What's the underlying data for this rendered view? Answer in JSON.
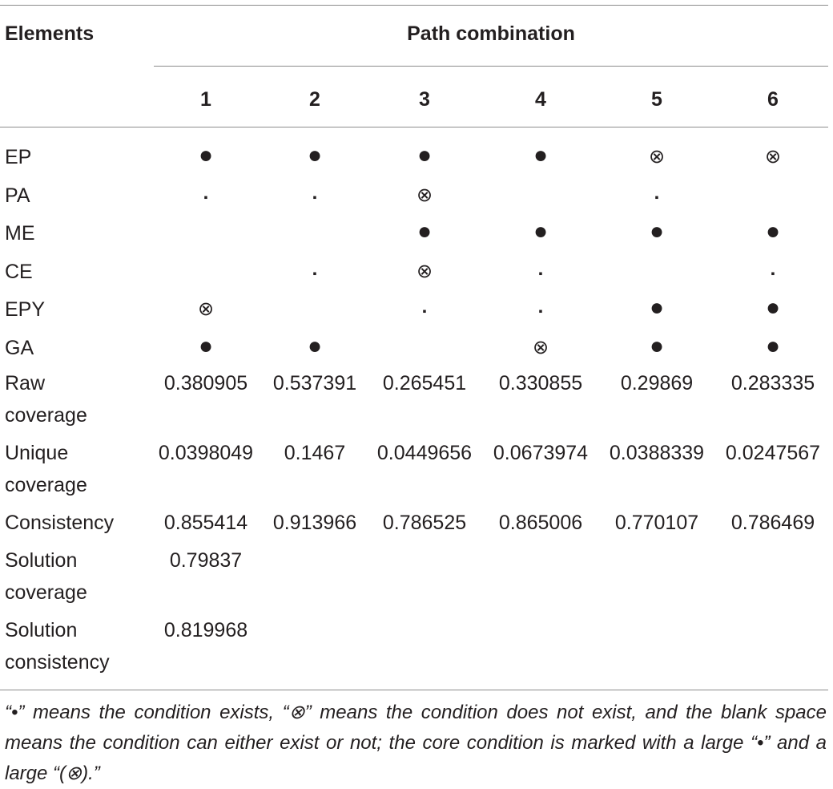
{
  "header": {
    "elements": "Elements",
    "path_combination": "Path combination",
    "columns": [
      "1",
      "2",
      "3",
      "4",
      "5",
      "6"
    ]
  },
  "rows": [
    {
      "label": "EP",
      "cells": [
        "core",
        "core",
        "core",
        "core",
        "absent",
        "absent"
      ]
    },
    {
      "label": "PA",
      "cells": [
        "peripheral",
        "peripheral",
        "absent",
        "",
        "peripheral",
        ""
      ]
    },
    {
      "label": "ME",
      "cells": [
        "",
        "",
        "core",
        "core",
        "core",
        "core"
      ]
    },
    {
      "label": "CE",
      "cells": [
        "",
        "peripheral",
        "absent",
        "peripheral",
        "",
        "peripheral"
      ]
    },
    {
      "label": "EPY",
      "cells": [
        "absent",
        "",
        "peripheral",
        "peripheral",
        "core",
        "core"
      ]
    },
    {
      "label": "GA",
      "cells": [
        "core",
        "core",
        "",
        "absent",
        "core",
        "core"
      ]
    }
  ],
  "symbols": {
    "core": "●",
    "peripheral": "■",
    "absent": "⊗"
  },
  "metrics": [
    {
      "label1": "Raw",
      "label2": "coverage",
      "values": [
        "0.380905",
        "0.537391",
        "0.265451",
        "0.330855",
        "0.29869",
        "0.283335"
      ]
    },
    {
      "label1": "Unique",
      "label2": "coverage",
      "values": [
        "0.0398049",
        "0.1467",
        "0.0449656",
        "0.0673974",
        "0.0388339",
        "0.0247567"
      ]
    },
    {
      "label1": "Consistency",
      "label2": "",
      "values": [
        "0.855414",
        "0.913966",
        "0.786525",
        "0.865006",
        "0.770107",
        "0.786469"
      ]
    }
  ],
  "solution": [
    {
      "label1": "Solution",
      "label2": "coverage",
      "value": "0.79837"
    },
    {
      "label1": "Solution",
      "label2": "consistency",
      "value": "0.819968"
    }
  ],
  "footnote": "“•” means the condition exists, “⊗” means the condition does not exist, and the blank space means the condition can either exist or not; the core condition is marked with a large “•” and a large “(⊗).”"
}
